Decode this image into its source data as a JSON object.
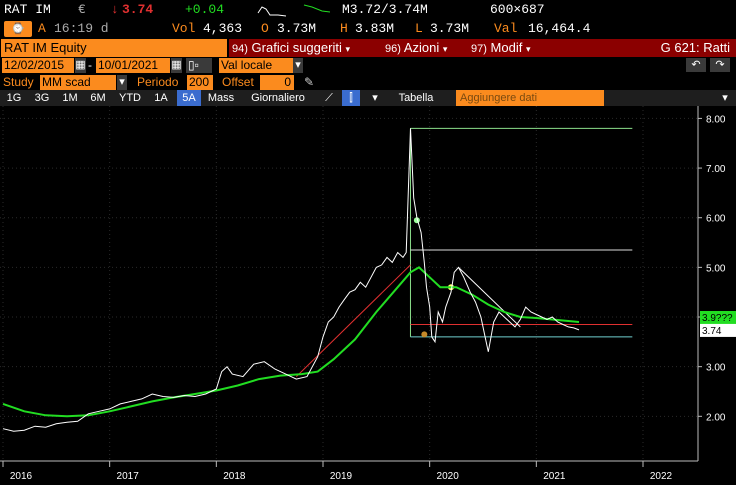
{
  "quote": {
    "ticker": "RAT IM",
    "currency": "€",
    "arrow": "↓",
    "last": "3.74",
    "change": "+0.04",
    "mid": "M3.72/3.74M",
    "size": "600×687",
    "time_prefix": "A",
    "time": "16:19 d",
    "vol_label": "Vol",
    "vol": "4,363",
    "open_label": "O",
    "open": "3.73M",
    "high_label": "H",
    "high": "3.83M",
    "low_label": "L",
    "low": "3.73M",
    "val_label": "Val",
    "val": "16,464.4"
  },
  "titlebar": {
    "security": "RAT IM Equity",
    "menu1_num": "94)",
    "menu1": "Grafici suggeriti",
    "menu2_num": "96)",
    "menu2": "Azioni",
    "menu3_num": "97)",
    "menu3": "Modif",
    "function": "G 621: Ratti"
  },
  "daterow": {
    "start": "12/02/2015",
    "end": "10/01/2021",
    "currency_mode": "Val locale"
  },
  "studyrow": {
    "study_label": "Study",
    "study_value": "MM scad",
    "period_label": "Periodo",
    "period_value": "200",
    "offset_label": "Offset",
    "offset_value": "0"
  },
  "tabs": [
    "1G",
    "3G",
    "1M",
    "6M",
    "YTD",
    "1A",
    "5A",
    "Mass",
    "Giornaliero"
  ],
  "active_tab": "5A",
  "table_label": "Tabella",
  "add_data_placeholder": "Aggiungere dati",
  "colors": {
    "orange": "#fb8b1e",
    "price": "#ffffff",
    "ma": "#22dd22",
    "red": "#e03030",
    "accent": "#3a6ccf"
  },
  "chart_data": {
    "type": "line",
    "x_ticks": [
      "2016",
      "2017",
      "2018",
      "2019",
      "2020",
      "2021",
      "2022"
    ],
    "y_ticks": [
      "2.00",
      "3.00",
      "4.00",
      "5.00",
      "6.00",
      "7.00",
      "8.00"
    ],
    "last_price_label": "3.74",
    "ma_label": "3.9???",
    "series": [
      {
        "values": [
          [
            2016.0,
            1.75
          ],
          [
            2016.1,
            1.7
          ],
          [
            2016.2,
            1.72
          ],
          [
            2016.3,
            1.8
          ],
          [
            2016.4,
            1.78
          ],
          [
            2016.5,
            1.85
          ],
          [
            2016.6,
            1.88
          ],
          [
            2016.7,
            1.9
          ],
          [
            2016.8,
            2.05
          ],
          [
            2016.9,
            2.1
          ],
          [
            2017.0,
            2.15
          ],
          [
            2017.1,
            2.25
          ],
          [
            2017.2,
            2.3
          ],
          [
            2017.3,
            2.35
          ],
          [
            2017.4,
            2.45
          ],
          [
            2017.5,
            2.4
          ],
          [
            2017.6,
            2.38
          ],
          [
            2017.7,
            2.42
          ],
          [
            2017.8,
            2.4
          ],
          [
            2017.9,
            2.45
          ],
          [
            2018.0,
            2.55
          ],
          [
            2018.05,
            2.9
          ],
          [
            2018.1,
            3.0
          ],
          [
            2018.15,
            2.85
          ],
          [
            2018.25,
            2.8
          ],
          [
            2018.35,
            3.05
          ],
          [
            2018.45,
            3.1
          ],
          [
            2018.55,
            2.95
          ],
          [
            2018.65,
            2.85
          ],
          [
            2018.75,
            2.75
          ],
          [
            2018.85,
            2.8
          ],
          [
            2018.95,
            3.2
          ],
          [
            2019.0,
            3.6
          ],
          [
            2019.05,
            3.9
          ],
          [
            2019.1,
            4.0
          ],
          [
            2019.15,
            4.2
          ],
          [
            2019.2,
            4.35
          ],
          [
            2019.25,
            4.5
          ],
          [
            2019.3,
            4.55
          ],
          [
            2019.35,
            4.7
          ],
          [
            2019.4,
            4.6
          ],
          [
            2019.45,
            4.8
          ],
          [
            2019.5,
            5.0
          ],
          [
            2019.55,
            5.05
          ],
          [
            2019.6,
            5.2
          ],
          [
            2019.65,
            5.1
          ],
          [
            2019.7,
            5.3
          ],
          [
            2019.75,
            5.2
          ],
          [
            2019.78,
            5.3
          ],
          [
            2019.82,
            7.8
          ],
          [
            2019.85,
            6.4
          ],
          [
            2019.88,
            6.0
          ],
          [
            2019.92,
            5.7
          ],
          [
            2019.95,
            5.1
          ],
          [
            2019.97,
            4.6
          ],
          [
            2020.0,
            4.2
          ],
          [
            2020.02,
            3.6
          ],
          [
            2020.05,
            3.5
          ],
          [
            2020.08,
            4.1
          ],
          [
            2020.12,
            3.9
          ],
          [
            2020.15,
            4.2
          ],
          [
            2020.2,
            4.5
          ],
          [
            2020.23,
            4.9
          ],
          [
            2020.27,
            5.0
          ],
          [
            2020.32,
            4.8
          ],
          [
            2020.38,
            4.5
          ],
          [
            2020.43,
            4.3
          ],
          [
            2020.48,
            4.0
          ],
          [
            2020.52,
            3.6
          ],
          [
            2020.55,
            3.3
          ],
          [
            2020.6,
            3.9
          ],
          [
            2020.65,
            4.1
          ],
          [
            2020.7,
            4.0
          ],
          [
            2020.75,
            3.9
          ],
          [
            2020.8,
            3.8
          ],
          [
            2020.85,
            3.95
          ],
          [
            2020.9,
            4.2
          ],
          [
            2020.95,
            4.1
          ],
          [
            2021.0,
            4.05
          ],
          [
            2021.05,
            4.0
          ],
          [
            2021.1,
            3.95
          ],
          [
            2021.15,
            4.0
          ],
          [
            2021.2,
            3.9
          ],
          [
            2021.25,
            3.85
          ],
          [
            2021.3,
            3.8
          ],
          [
            2021.35,
            3.78
          ],
          [
            2021.4,
            3.74
          ]
        ]
      },
      {
        "values": [
          [
            2016.0,
            2.25
          ],
          [
            2016.2,
            2.1
          ],
          [
            2016.4,
            2.02
          ],
          [
            2016.6,
            2.0
          ],
          [
            2016.8,
            2.02
          ],
          [
            2017.0,
            2.1
          ],
          [
            2017.2,
            2.2
          ],
          [
            2017.4,
            2.3
          ],
          [
            2017.6,
            2.38
          ],
          [
            2017.8,
            2.45
          ],
          [
            2018.0,
            2.52
          ],
          [
            2018.2,
            2.62
          ],
          [
            2018.4,
            2.75
          ],
          [
            2018.6,
            2.82
          ],
          [
            2018.8,
            2.85
          ],
          [
            2018.95,
            2.9
          ],
          [
            2019.1,
            3.15
          ],
          [
            2019.3,
            3.55
          ],
          [
            2019.5,
            4.1
          ],
          [
            2019.7,
            4.6
          ],
          [
            2019.82,
            4.9
          ],
          [
            2019.9,
            5.0
          ],
          [
            2020.0,
            4.8
          ],
          [
            2020.1,
            4.6
          ],
          [
            2020.25,
            4.6
          ],
          [
            2020.4,
            4.45
          ],
          [
            2020.55,
            4.25
          ],
          [
            2020.7,
            4.1
          ],
          [
            2020.85,
            4.0
          ],
          [
            2021.0,
            3.98
          ],
          [
            2021.15,
            3.95
          ],
          [
            2021.4,
            3.9
          ]
        ]
      }
    ]
  }
}
